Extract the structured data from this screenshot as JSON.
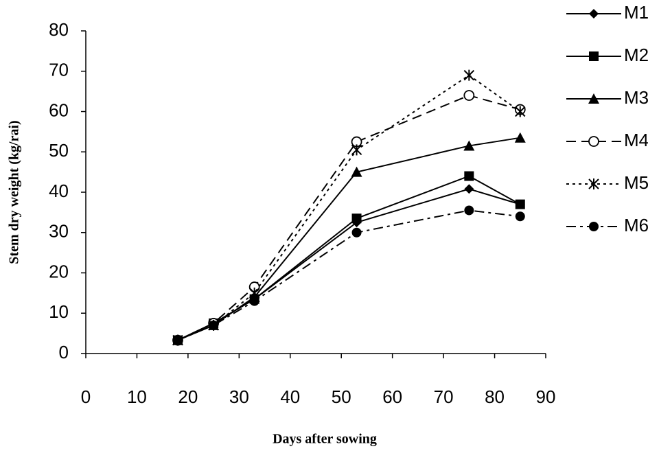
{
  "chart_data": {
    "type": "line",
    "x_label": "Days after sowing",
    "y_label": "Stem dry weight (kg/rai)",
    "x": [
      18,
      25,
      33,
      53,
      75,
      85
    ],
    "xlim": [
      0,
      90
    ],
    "xticks": [
      0,
      10,
      20,
      30,
      40,
      50,
      60,
      70,
      80,
      90
    ],
    "ylim": [
      0,
      80
    ],
    "yticks": [
      0,
      10,
      20,
      30,
      40,
      50,
      60,
      70,
      80
    ],
    "grid": false,
    "legend": "right",
    "series": [
      {
        "name": "M1",
        "color": "#000000",
        "marker": "diamond",
        "dash": "solid",
        "values": [
          3.3,
          7.5,
          13.5,
          32.5,
          40.8,
          37
        ]
      },
      {
        "name": "M2",
        "color": "#000000",
        "marker": "square",
        "dash": "solid",
        "values": [
          3.3,
          7.5,
          13.5,
          33.5,
          44,
          37
        ]
      },
      {
        "name": "M3",
        "color": "#000000",
        "marker": "triangle",
        "dash": "solid",
        "values": [
          3.3,
          7,
          14,
          45,
          51.5,
          53.5
        ]
      },
      {
        "name": "M4",
        "color": "#000000",
        "marker": "open-circle",
        "dash": "dashed",
        "values": [
          3.3,
          7.5,
          16.5,
          52.5,
          64,
          60.5
        ]
      },
      {
        "name": "M5",
        "color": "#000000",
        "marker": "asterisk",
        "dash": "dotted",
        "values": [
          3.3,
          7,
          15,
          50.5,
          69,
          60
        ]
      },
      {
        "name": "M6",
        "color": "#000000",
        "marker": "circle",
        "dash": "dashdot",
        "values": [
          3.3,
          7,
          13,
          30,
          35.5,
          34
        ]
      }
    ]
  }
}
